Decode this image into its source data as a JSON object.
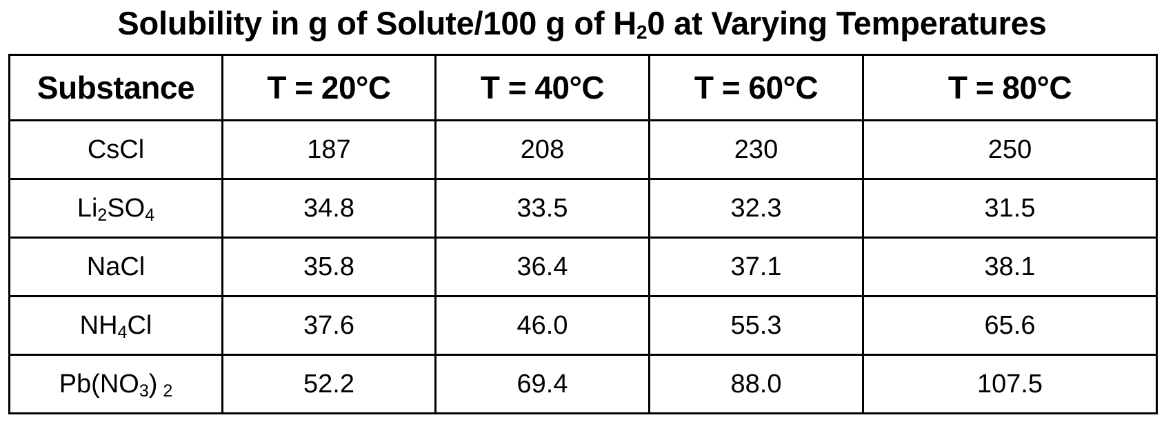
{
  "title": {
    "before_subscript": "Solubility in g of Solute/100 g of H",
    "subscript": "2",
    "after_subscript": "0 at Varying Temperatures"
  },
  "table": {
    "headers": [
      "Substance",
      "T = 20°C",
      "T = 40°C",
      "T = 60°C",
      "T = 80°C"
    ],
    "rows": [
      {
        "substance": [
          {
            "t": "CsCl",
            "sub": false
          }
        ],
        "values": [
          "187",
          "208",
          "230",
          "250"
        ]
      },
      {
        "substance": [
          {
            "t": "Li",
            "sub": false
          },
          {
            "t": "2",
            "sub": true
          },
          {
            "t": "SO",
            "sub": false
          },
          {
            "t": "4",
            "sub": true
          }
        ],
        "values": [
          "34.8",
          "33.5",
          "32.3",
          "31.5"
        ]
      },
      {
        "substance": [
          {
            "t": "NaCl",
            "sub": false
          }
        ],
        "values": [
          "35.8",
          "36.4",
          "37.1",
          "38.1"
        ]
      },
      {
        "substance": [
          {
            "t": "NH",
            "sub": false
          },
          {
            "t": "4",
            "sub": true
          },
          {
            "t": "Cl",
            "sub": false
          }
        ],
        "values": [
          "37.6",
          "46.0",
          "55.3",
          "65.6"
        ]
      },
      {
        "substance": [
          {
            "t": "Pb(NO",
            "sub": false
          },
          {
            "t": "3",
            "sub": true
          },
          {
            "t": ")",
            "sub": false
          },
          {
            "t": "2",
            "sub": true,
            "spaced": true
          }
        ],
        "values": [
          "52.2",
          "69.4",
          "88.0",
          "107.5"
        ]
      }
    ]
  }
}
